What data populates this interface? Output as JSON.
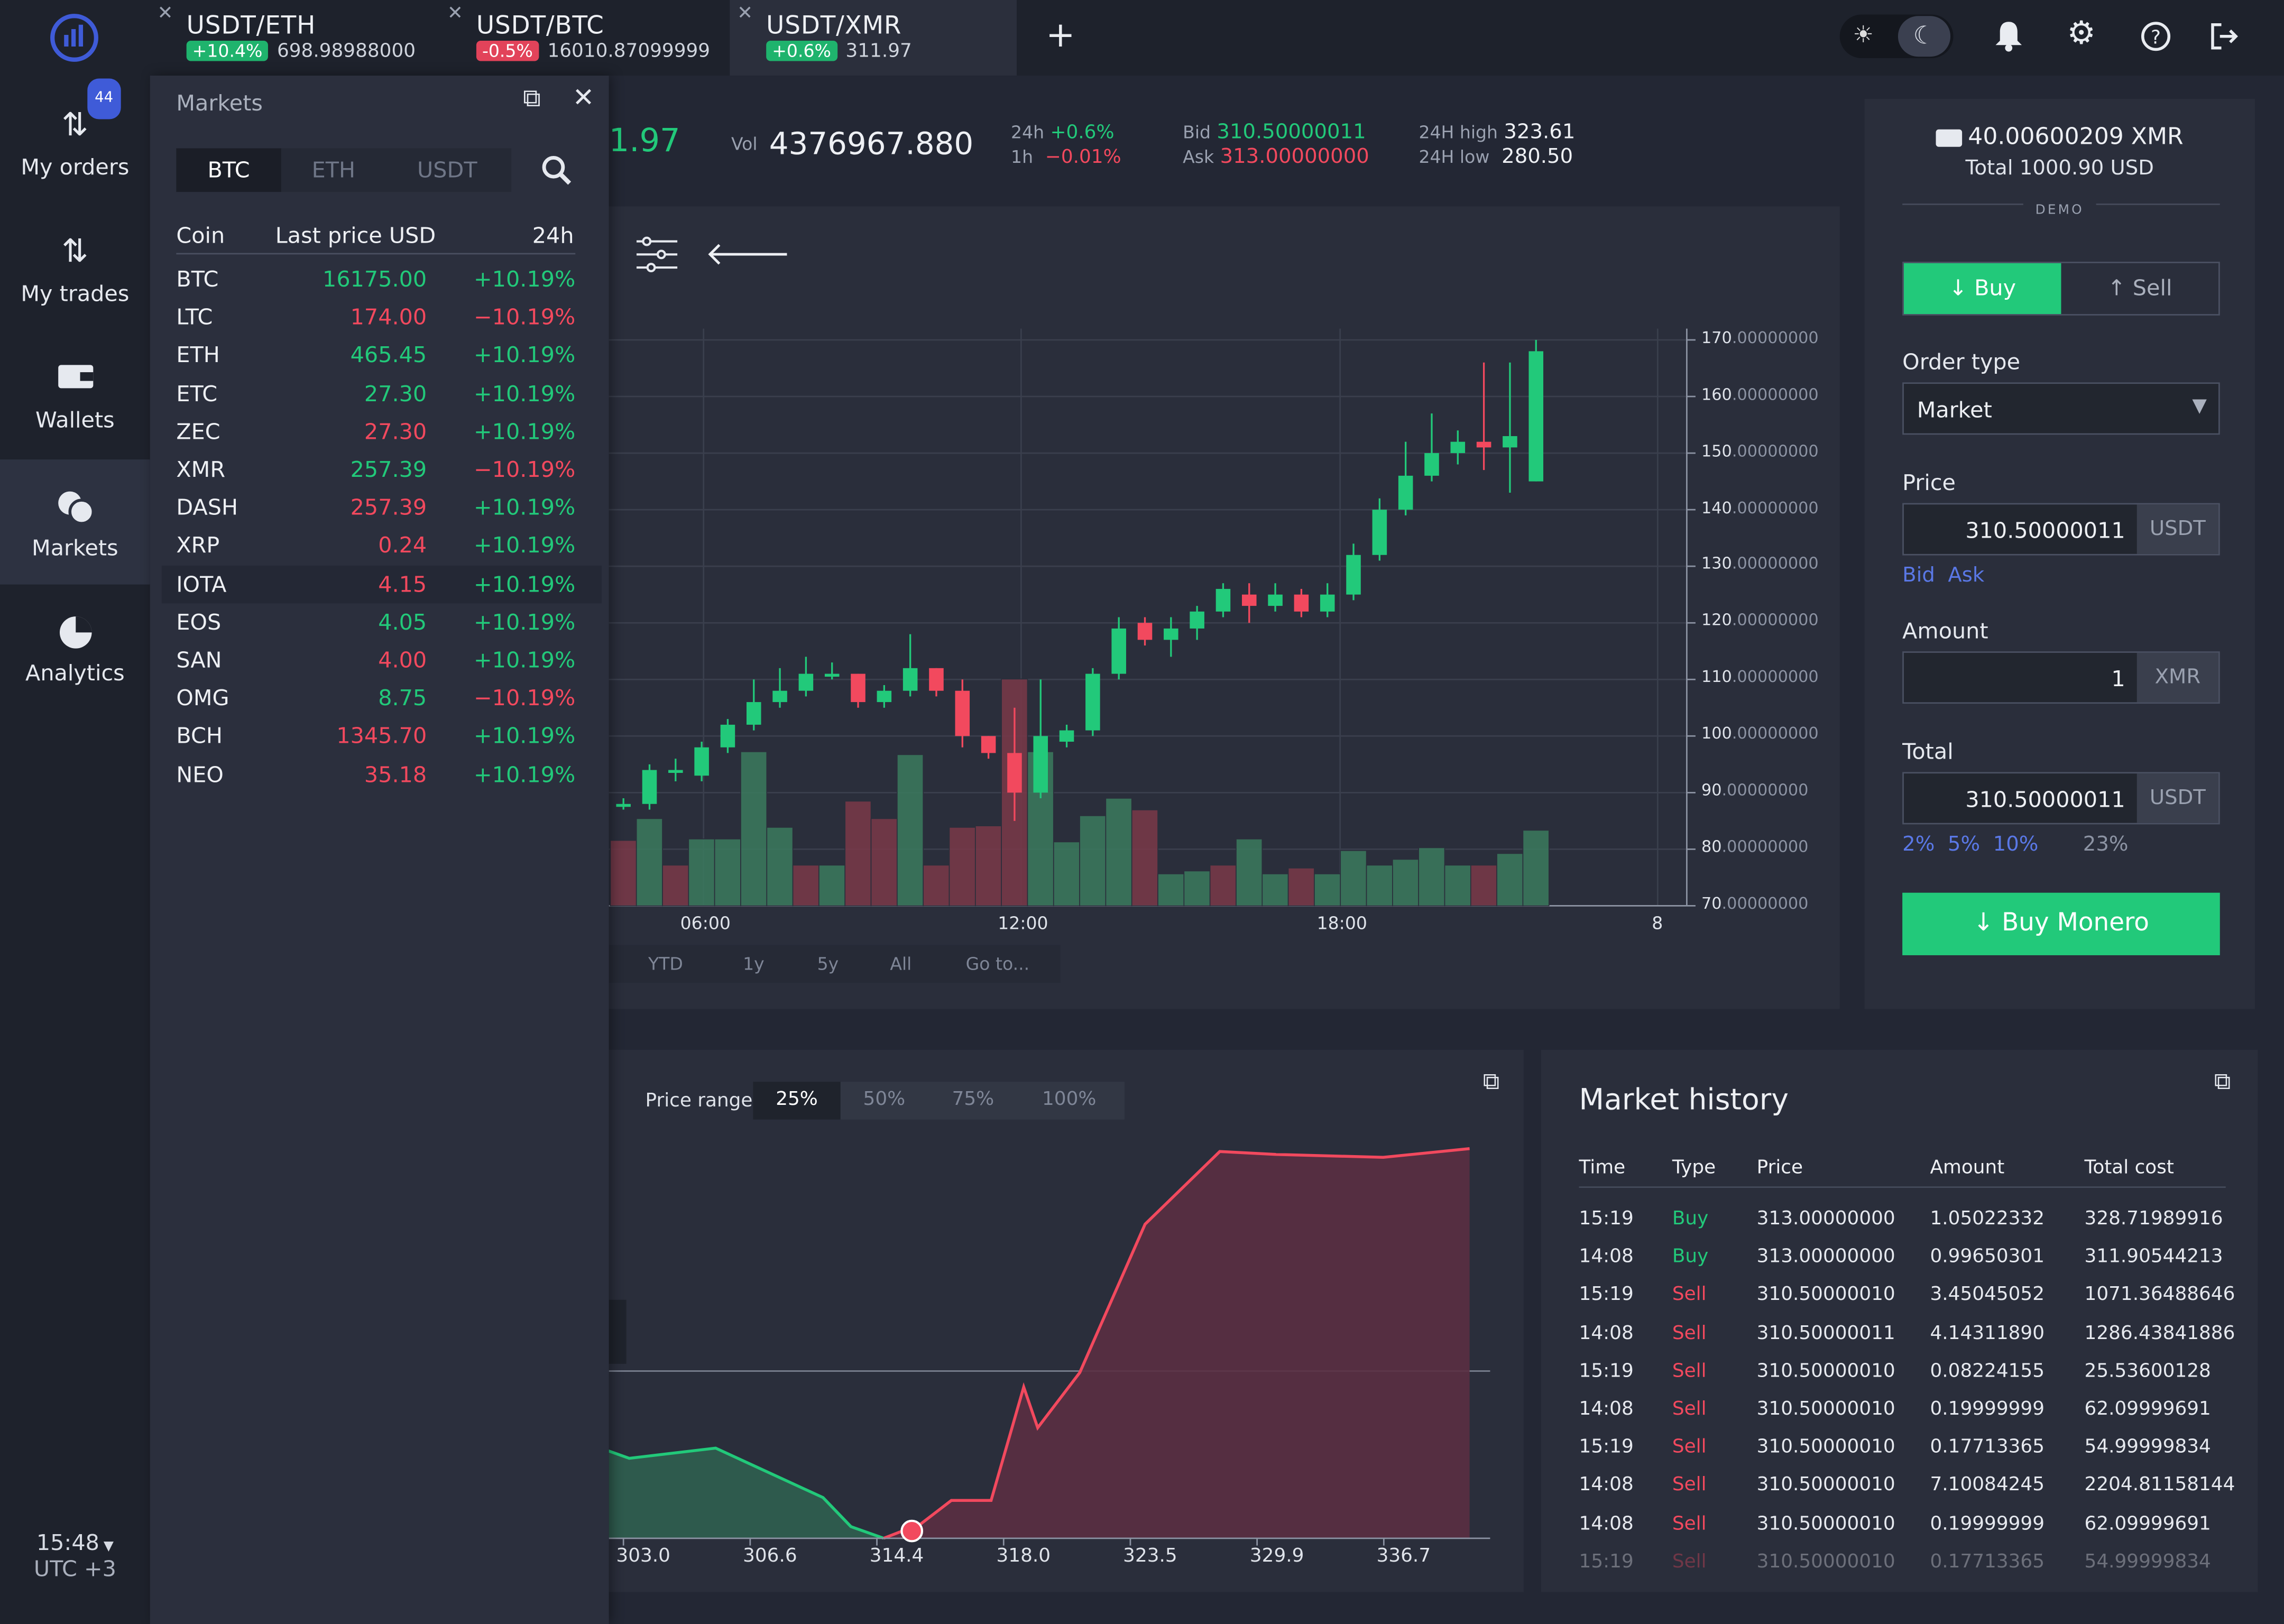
{
  "sidebar": {
    "items": [
      {
        "label": "My orders",
        "badge": "44"
      },
      {
        "label": "My trades"
      },
      {
        "label": "Wallets"
      },
      {
        "label": "Markets"
      },
      {
        "label": "Analytics"
      }
    ],
    "time": "15:48",
    "timezone": "UTC +3"
  },
  "tabs": [
    {
      "pair": "USDT/ETH",
      "change": "+10.4%",
      "price": "698.98988000",
      "dir": "up"
    },
    {
      "pair": "USDT/BTC",
      "change": "-0.5%",
      "price": "16010.87099999",
      "dir": "down"
    },
    {
      "pair": "USDT/XMR",
      "change": "+0.6%",
      "price": "311.97",
      "dir": "up"
    }
  ],
  "ticker": {
    "last_price_fragment": "1.97",
    "vol_label": "Vol",
    "vol": "4376967.880",
    "h24_label": "24h",
    "h24": "+0.6%",
    "h1_label": "1h",
    "h1": "−0.01%",
    "bid_label": "Bid",
    "bid": "310.50000011",
    "ask_label": "Ask",
    "ask": "313.00000000",
    "high_label": "24H high",
    "high": "323.61",
    "low_label": "24H low",
    "low": "280.50"
  },
  "markets": {
    "title": "Markets",
    "tabs": [
      "BTC",
      "ETH",
      "USDT"
    ],
    "headers": {
      "coin": "Coin",
      "price": "Last price USD",
      "change": "24h"
    },
    "rows": [
      {
        "coin": "BTC",
        "price": "16175.00",
        "change": "+10.19%",
        "pc": "green",
        "cc": "green"
      },
      {
        "coin": "LTC",
        "price": "174.00",
        "change": "−10.19%",
        "pc": "red",
        "cc": "red"
      },
      {
        "coin": "ETH",
        "price": "465.45",
        "change": "+10.19%",
        "pc": "green",
        "cc": "green"
      },
      {
        "coin": "ETC",
        "price": "27.30",
        "change": "+10.19%",
        "pc": "green",
        "cc": "green"
      },
      {
        "coin": "ZEC",
        "price": "27.30",
        "change": "+10.19%",
        "pc": "red",
        "cc": "green"
      },
      {
        "coin": "XMR",
        "price": "257.39",
        "change": "−10.19%",
        "pc": "green",
        "cc": "red"
      },
      {
        "coin": "DASH",
        "price": "257.39",
        "change": "+10.19%",
        "pc": "red",
        "cc": "green"
      },
      {
        "coin": "XRP",
        "price": "0.24",
        "change": "+10.19%",
        "pc": "red",
        "cc": "green"
      },
      {
        "coin": "IOTA",
        "price": "4.15",
        "change": "+10.19%",
        "pc": "red",
        "cc": "green"
      },
      {
        "coin": "EOS",
        "price": "4.05",
        "change": "+10.19%",
        "pc": "green",
        "cc": "green"
      },
      {
        "coin": "SAN",
        "price": "4.00",
        "change": "+10.19%",
        "pc": "red",
        "cc": "green"
      },
      {
        "coin": "OMG",
        "price": "8.75",
        "change": "−10.19%",
        "pc": "green",
        "cc": "red"
      },
      {
        "coin": "BCH",
        "price": "1345.70",
        "change": "+10.19%",
        "pc": "red",
        "cc": "green"
      },
      {
        "coin": "NEO",
        "price": "35.18",
        "change": "+10.19%",
        "pc": "red",
        "cc": "green"
      }
    ]
  },
  "chart": {
    "range_buttons": [
      "YTD",
      "1y",
      "5y",
      "All",
      "Go to..."
    ]
  },
  "chart_data": [
    {
      "type": "candlestick",
      "x_ticks": [
        "06:00",
        "12:00",
        "18:00",
        "8"
      ],
      "y_ticks": [
        {
          "int": "170",
          "dec": ".00000000"
        },
        {
          "int": "160",
          "dec": ".00000000"
        },
        {
          "int": "150",
          "dec": ".00000000"
        },
        {
          "int": "140",
          "dec": ".00000000"
        },
        {
          "int": "130",
          "dec": ".00000000"
        },
        {
          "int": "120",
          "dec": ".00000000"
        },
        {
          "int": "110",
          "dec": ".00000000"
        },
        {
          "int": "100",
          "dec": ".00000000"
        },
        {
          "int": "90",
          "dec": ".00000000"
        },
        {
          "int": "80",
          "dec": ".00000000"
        },
        {
          "int": "70",
          "dec": ".00000000"
        }
      ],
      "ylim": [
        70,
        172
      ],
      "candles": [
        {
          "o": 88,
          "c": 88,
          "h": 89,
          "l": 87
        },
        {
          "o": 88,
          "c": 94,
          "h": 95,
          "l": 87
        },
        {
          "o": 94,
          "c": 94,
          "h": 96,
          "l": 92
        },
        {
          "o": 93,
          "c": 98,
          "h": 99,
          "l": 92
        },
        {
          "o": 98,
          "c": 102,
          "h": 103,
          "l": 97
        },
        {
          "o": 102,
          "c": 106,
          "h": 110,
          "l": 101
        },
        {
          "o": 106,
          "c": 108,
          "h": 112,
          "l": 105
        },
        {
          "o": 108,
          "c": 111,
          "h": 114,
          "l": 107
        },
        {
          "o": 111,
          "c": 111,
          "h": 113,
          "l": 110
        },
        {
          "o": 111,
          "c": 106,
          "h": 111,
          "l": 105
        },
        {
          "o": 106,
          "c": 108,
          "h": 109,
          "l": 105
        },
        {
          "o": 108,
          "c": 112,
          "h": 118,
          "l": 107
        },
        {
          "o": 112,
          "c": 108,
          "h": 112,
          "l": 107
        },
        {
          "o": 108,
          "c": 100,
          "h": 110,
          "l": 98
        },
        {
          "o": 100,
          "c": 97,
          "h": 100,
          "l": 96
        },
        {
          "o": 97,
          "c": 90,
          "h": 105,
          "l": 85
        },
        {
          "o": 90,
          "c": 100,
          "h": 110,
          "l": 89
        },
        {
          "o": 99,
          "c": 101,
          "h": 102,
          "l": 98
        },
        {
          "o": 101,
          "c": 111,
          "h": 112,
          "l": 100
        },
        {
          "o": 111,
          "c": 119,
          "h": 121,
          "l": 110
        },
        {
          "o": 120,
          "c": 117,
          "h": 121,
          "l": 116
        },
        {
          "o": 117,
          "c": 119,
          "h": 121,
          "l": 114
        },
        {
          "o": 119,
          "c": 122,
          "h": 123,
          "l": 117
        },
        {
          "o": 122,
          "c": 126,
          "h": 127,
          "l": 121
        },
        {
          "o": 125,
          "c": 123,
          "h": 127,
          "l": 120
        },
        {
          "o": 123,
          "c": 125,
          "h": 127,
          "l": 122
        },
        {
          "o": 125,
          "c": 122,
          "h": 126,
          "l": 121
        },
        {
          "o": 122,
          "c": 125,
          "h": 127,
          "l": 121
        },
        {
          "o": 125,
          "c": 132,
          "h": 134,
          "l": 124
        },
        {
          "o": 132,
          "c": 140,
          "h": 142,
          "l": 131
        },
        {
          "o": 140,
          "c": 146,
          "h": 152,
          "l": 139
        },
        {
          "o": 146,
          "c": 150,
          "h": 157,
          "l": 145
        },
        {
          "o": 150,
          "c": 152,
          "h": 154,
          "l": 148
        },
        {
          "o": 152,
          "c": 151,
          "h": 166,
          "l": 147
        },
        {
          "o": 151,
          "c": 153,
          "h": 166,
          "l": 143
        },
        {
          "o": 145,
          "c": 168,
          "h": 170,
          "l": 145
        }
      ],
      "volume_colors": [
        "r",
        "g",
        "r",
        "g",
        "g",
        "g",
        "g",
        "r",
        "g",
        "r",
        "r",
        "g",
        "r",
        "r",
        "r",
        "r",
        "g",
        "g",
        "g",
        "g",
        "r",
        "g",
        "g",
        "r",
        "g",
        "g",
        "r",
        "g",
        "g",
        "g",
        "g",
        "g",
        "g",
        "r",
        "g",
        "g"
      ]
    },
    {
      "type": "area",
      "title": "Price range",
      "range_options": [
        "25%",
        "50%",
        "75%",
        "100%"
      ],
      "selected_range": "25%",
      "x_ticks": [
        "303.0",
        "306.6",
        "314.4",
        "318.0",
        "323.5",
        "329.9",
        "336.7"
      ],
      "series": [
        {
          "color": "green",
          "x": [
            300,
            303.5,
            307.2,
            311.8,
            313.0,
            314.4
          ],
          "y": [
            75,
            55,
            62,
            28,
            8,
            0
          ]
        },
        {
          "color": "red",
          "x": [
            314.4,
            316.0,
            317.3,
            319.0,
            320.4,
            321.0,
            322.8,
            325.6,
            328.8,
            331.2,
            335.8,
            339.5
          ],
          "y": [
            0,
            10,
            26,
            26,
            104,
            76,
            114,
            216,
            266,
            264,
            262,
            268
          ]
        }
      ]
    }
  ],
  "order": {
    "balance": "40.00600209 XMR",
    "total": "Total 1000.90 USD",
    "mode": "DEMO",
    "buy": "Buy",
    "sell": "Sell",
    "order_type_label": "Order type",
    "order_type": "Market",
    "price_label": "Price",
    "price": "310.50000011",
    "price_unit": "USDT",
    "bid_link": "Bid",
    "ask_link": "Ask",
    "amount_label": "Amount",
    "amount": "1",
    "amount_unit": "XMR",
    "total_label": "Total",
    "total_value": "310.50000011",
    "total_unit": "USDT",
    "pcts": [
      "2%",
      "5%",
      "10%"
    ],
    "pct_other": "23%",
    "submit": "Buy Monero"
  },
  "history": {
    "title": "Market history",
    "headers": [
      "Time",
      "Type",
      "Price",
      "Amount",
      "Total cost"
    ],
    "rows": [
      [
        "15:19",
        "Buy",
        "313.00000000",
        "1.05022332",
        "328.71989916"
      ],
      [
        "14:08",
        "Buy",
        "313.00000000",
        "0.99650301",
        "311.90544213"
      ],
      [
        "15:19",
        "Sell",
        "310.50000010",
        "3.45045052",
        "1071.36488646"
      ],
      [
        "14:08",
        "Sell",
        "310.50000011",
        "4.14311890",
        "1286.43841886"
      ],
      [
        "15:19",
        "Sell",
        "310.50000010",
        "0.08224155",
        "25.53600128"
      ],
      [
        "14:08",
        "Sell",
        "310.50000010",
        "0.19999999",
        "62.09999691"
      ],
      [
        "15:19",
        "Sell",
        "310.50000010",
        "0.17713365",
        "54.99999834"
      ],
      [
        "14:08",
        "Sell",
        "310.50000010",
        "7.10084245",
        "2204.81158144"
      ],
      [
        "14:08",
        "Sell",
        "310.50000010",
        "0.19999999",
        "62.09999691"
      ],
      [
        "15:19",
        "Sell",
        "310.50000010",
        "0.17713365",
        "54.99999834"
      ]
    ]
  },
  "colors": {
    "up": "#22c97a",
    "down": "#f2495e",
    "accent": "#3f5bd8",
    "bg": "#232734"
  }
}
